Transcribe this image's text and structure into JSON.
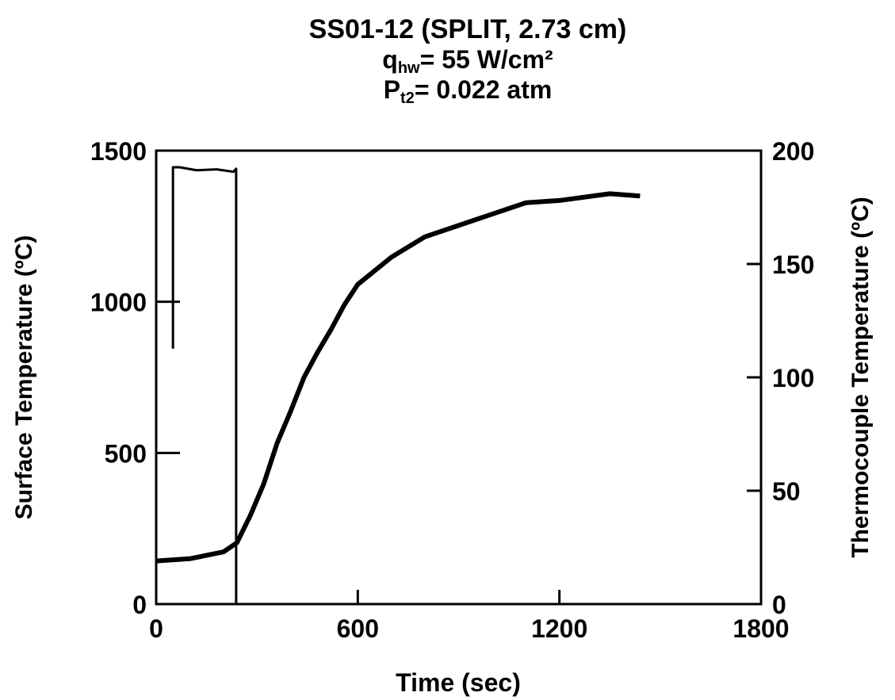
{
  "chart_data": {
    "type": "line",
    "title": "SS01-12 (SPLIT, 2.73 cm)",
    "subtitle_lines": [
      {
        "main": "q",
        "sub": "hw",
        "rest": "= 55 W/cm²"
      },
      {
        "main": "P",
        "sub": "t2",
        "rest": "= 0.022 atm"
      }
    ],
    "xlabel": "Time (sec)",
    "ylabel": "Surface Temperature (ºC)",
    "y2label": "Thermocouple Temperature (ºC)",
    "xlim": [
      0,
      1800
    ],
    "xticks": [
      0,
      600,
      1200,
      1800
    ],
    "ylim": [
      0,
      1500
    ],
    "yticks": [
      0,
      500,
      1000,
      1500
    ],
    "y2lim": [
      0,
      200
    ],
    "y2ticks": [
      0,
      50,
      100,
      150,
      200
    ],
    "grid": false,
    "series": [
      {
        "color": "#000000",
        "axis": "y",
        "x": [
          50,
          50,
          70,
          120,
          180,
          230,
          238,
          238
        ],
        "values": [
          845,
          1445,
          1445,
          1435,
          1438,
          1430,
          1440,
          0
        ]
      },
      {
        "color": "#000000",
        "axis": "y2",
        "x": [
          0,
          100,
          200,
          240,
          280,
          320,
          360,
          400,
          440,
          480,
          520,
          560,
          600,
          700,
          800,
          900,
          1000,
          1100,
          1200,
          1350,
          1440
        ],
        "values": [
          19,
          20,
          23,
          27,
          39,
          53,
          71,
          85,
          100,
          111,
          121,
          132,
          141,
          153,
          162,
          167,
          172,
          177,
          178,
          181,
          180
        ]
      }
    ]
  }
}
